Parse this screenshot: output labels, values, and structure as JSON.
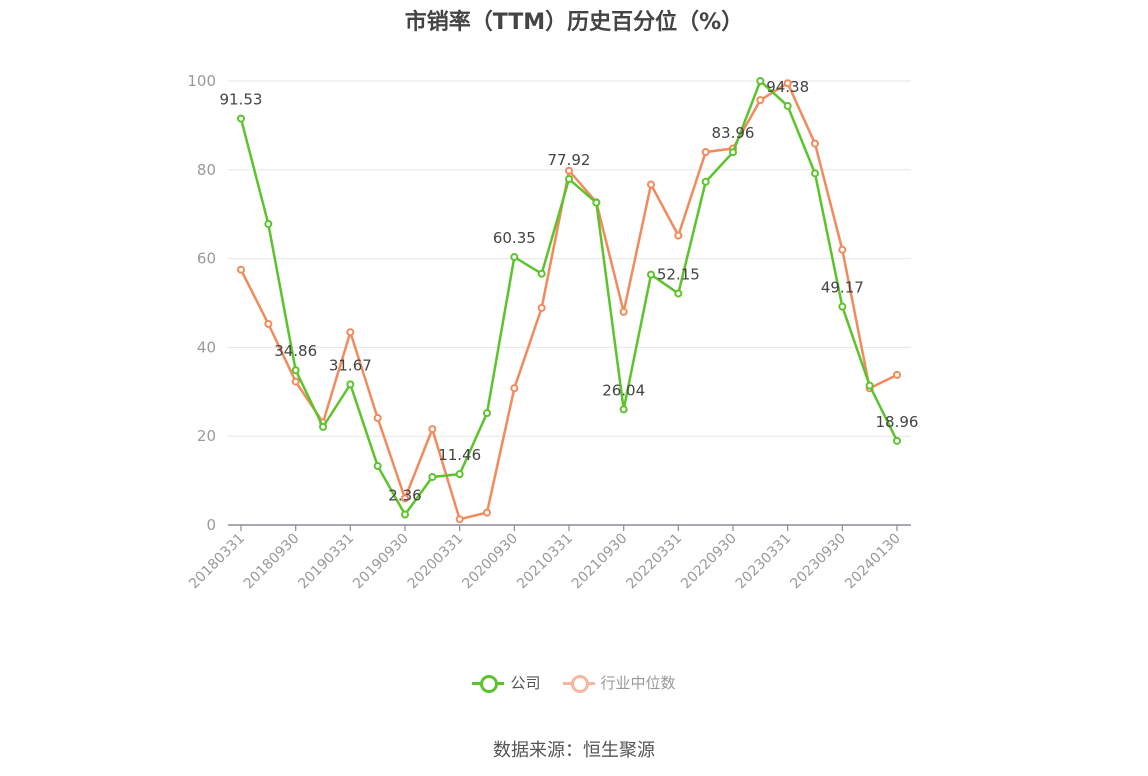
{
  "chart_data": {
    "type": "line",
    "title": "市销率（TTM）历史百分位（%）",
    "ylim": [
      0,
      100
    ],
    "yticks": [
      0,
      20,
      40,
      60,
      80,
      100
    ],
    "grid": true,
    "legend_placement": "bottom-center",
    "x": [
      "20180331",
      "20180630",
      "20180930",
      "20181231",
      "20190331",
      "20190630",
      "20190930",
      "20191231",
      "20200331",
      "20200630",
      "20200930",
      "20201231",
      "20210331",
      "20210630",
      "20210930",
      "20211231",
      "20220331",
      "20220630",
      "20220930",
      "20221231",
      "20230331",
      "20230630",
      "20230930",
      "20231231",
      "20240130"
    ],
    "xtick_labels": [
      "20180331",
      "20180930",
      "20190331",
      "20190930",
      "20200331",
      "20200930",
      "20210331",
      "20210930",
      "20220331",
      "20220930",
      "20230331",
      "20230930",
      "20240130"
    ],
    "series": [
      {
        "name": "公司",
        "color": "#5cc42b",
        "values": [
          91.53,
          67.8,
          34.86,
          22.1,
          31.67,
          13.3,
          2.36,
          10.8,
          11.46,
          25.2,
          60.35,
          56.6,
          77.92,
          72.6,
          26.04,
          56.4,
          52.15,
          77.3,
          83.96,
          100.0,
          94.38,
          79.2,
          49.17,
          31.4,
          18.96
        ],
        "labeled_indices": [
          0,
          2,
          4,
          6,
          8,
          10,
          12,
          14,
          16,
          18,
          20,
          22,
          24
        ]
      },
      {
        "name": "行业中位数",
        "color": "#f28a5c",
        "values": [
          57.5,
          45.3,
          32.3,
          23.1,
          43.4,
          24.1,
          6.0,
          21.6,
          1.3,
          2.8,
          30.8,
          48.9,
          79.8,
          72.7,
          48.0,
          76.7,
          65.2,
          84.0,
          84.8,
          95.7,
          99.5,
          85.9,
          62.0,
          30.8,
          33.8
        ]
      }
    ]
  },
  "legend": {
    "company": "公司",
    "industry": "行业中位数"
  },
  "source": "数据来源：恒生聚源"
}
